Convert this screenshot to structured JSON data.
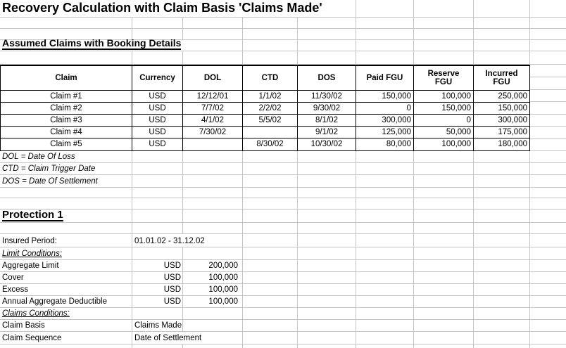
{
  "title": "Recovery Calculation with Claim Basis 'Claims Made'",
  "section_claims": {
    "heading": "Assumed Claims with Booking Details",
    "table": {
      "headers": [
        "Claim",
        "Currency",
        "DOL",
        "CTD",
        "DOS",
        "Paid FGU",
        "Reserve\nFGU",
        "Incurred\nFGU"
      ],
      "rows": [
        [
          "Claim #1",
          "USD",
          "12/12/01",
          "1/1/02",
          "11/30/02",
          "150,000",
          "100,000",
          "250,000"
        ],
        [
          "Claim #2",
          "USD",
          "7/7/02",
          "2/2/02",
          "9/30/02",
          "0",
          "150,000",
          "150,000"
        ],
        [
          "Claim #3",
          "USD",
          "4/1/02",
          "5/5/02",
          "8/1/02",
          "300,000",
          "0",
          "300,000"
        ],
        [
          "Claim #4",
          "USD",
          "7/30/02",
          "",
          "9/1/02",
          "125,000",
          "50,000",
          "175,000"
        ],
        [
          "Claim #5",
          "USD",
          "",
          "8/30/02",
          "10/30/02",
          "80,000",
          "100,000",
          "180,000"
        ]
      ]
    },
    "footnotes": [
      "DOL = Date Of Loss",
      "CTD = Claim Trigger Date",
      "DOS = Date Of Settlement"
    ]
  },
  "section_protection": {
    "heading": "Protection 1",
    "insured_period": {
      "label": "Insured Period:",
      "value": "01.01.02 - 31.12.02"
    },
    "limit_conditions": {
      "heading": "Limit Conditions:",
      "rows": [
        [
          "Aggregate Limit",
          "USD",
          "200,000"
        ],
        [
          "Cover",
          "USD",
          "100,000"
        ],
        [
          "Excess",
          "USD",
          "100,000"
        ],
        [
          "Annual Aggregate Deductible",
          "USD",
          "100,000"
        ]
      ]
    },
    "claims_conditions": {
      "heading": "Claims Conditions:",
      "rows": [
        [
          "Claim Basis",
          "Claims Made"
        ],
        [
          "Claim Sequence",
          "Date of Settlement"
        ]
      ]
    }
  },
  "colors": {
    "background": "#ffffff",
    "gridline": "#c5c5c5",
    "table_border": "#000000",
    "text": "#000000"
  }
}
